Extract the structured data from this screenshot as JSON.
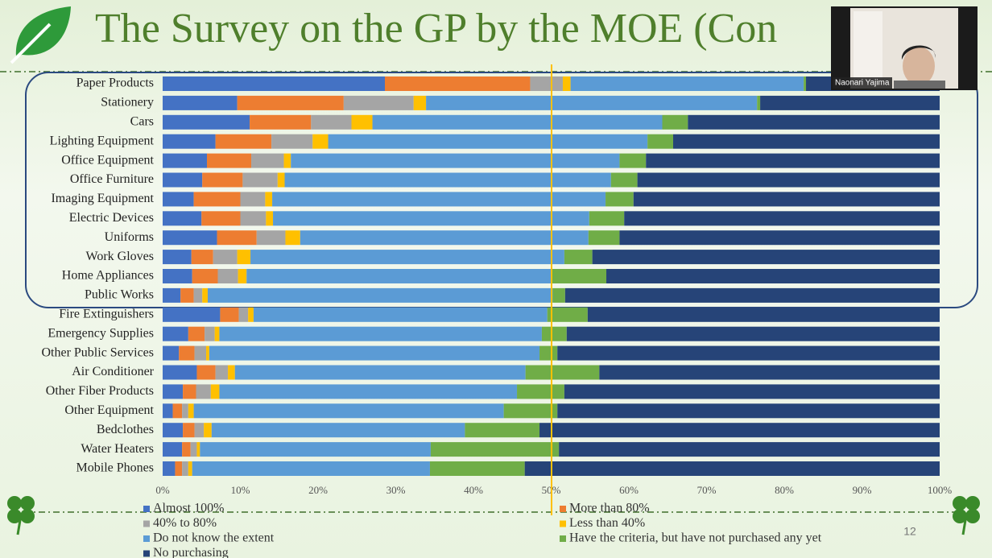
{
  "slide": {
    "title": "The Survey on the GP by the MOE (Con",
    "page_number": "12",
    "participant": "Naonari Yajima"
  },
  "chart_data": {
    "type": "stacked_bar_horizontal",
    "categories": [
      "Paper Products",
      "Stationery",
      "Cars",
      "Lighting Equipment",
      "Office Equipment",
      "Office Furniture",
      "Imaging Equipment",
      "Electric Devices",
      "Uniforms",
      "Work Gloves",
      "Home Appliances",
      "Public Works",
      "Fire Extinguishers",
      "Emergency Supplies",
      "Other Public Services",
      "Air Conditioner",
      "Other Fiber Products",
      "Other Equipment",
      "Bedclothes",
      "Water Heaters",
      "Mobile Phones"
    ],
    "series": [
      {
        "name": "Almost 100%",
        "color": "#4472c4",
        "values": [
          28.6,
          9.6,
          11.2,
          6.8,
          5.7,
          5.1,
          4.0,
          5.0,
          7.0,
          3.7,
          3.8,
          2.3,
          7.4,
          3.3,
          2.1,
          4.4,
          2.6,
          1.3,
          2.6,
          2.5,
          1.6
        ]
      },
      {
        "name": "More than 80%",
        "color": "#ed7d31",
        "values": [
          18.7,
          13.7,
          7.9,
          7.2,
          5.7,
          5.2,
          6.0,
          5.0,
          5.1,
          2.8,
          3.3,
          1.7,
          2.4,
          2.1,
          2.0,
          2.4,
          1.7,
          1.2,
          1.5,
          1.1,
          0.9
        ]
      },
      {
        "name": "40% to 80%",
        "color": "#a5a5a5",
        "values": [
          4.2,
          9.0,
          5.2,
          5.3,
          4.2,
          4.5,
          3.2,
          3.3,
          3.7,
          3.1,
          2.6,
          1.1,
          1.2,
          1.3,
          1.5,
          1.6,
          1.9,
          0.8,
          1.2,
          0.8,
          0.8
        ]
      },
      {
        "name": "Less than 40%",
        "color": "#ffc000",
        "values": [
          1.0,
          1.6,
          2.7,
          2.0,
          0.9,
          0.9,
          0.9,
          0.9,
          1.9,
          1.7,
          1.1,
          0.7,
          0.7,
          0.6,
          0.4,
          0.9,
          1.1,
          0.7,
          1.0,
          0.4,
          0.5
        ]
      },
      {
        "name": "Do not know the extent",
        "color": "#5b9bd5",
        "values": [
          30.0,
          42.6,
          37.3,
          41.1,
          42.3,
          42.0,
          42.9,
          40.7,
          37.1,
          40.4,
          39.3,
          44.4,
          37.8,
          41.5,
          42.5,
          37.4,
          38.3,
          39.9,
          32.6,
          29.7,
          30.6
        ]
      },
      {
        "name": "Have the criteria, but have not purchased any yet",
        "color": "#70ad47",
        "values": [
          0.3,
          0.4,
          3.3,
          3.3,
          3.4,
          3.4,
          3.6,
          4.5,
          4.0,
          3.6,
          7.0,
          1.6,
          5.2,
          3.2,
          2.3,
          9.5,
          6.1,
          6.9,
          9.6,
          16.5,
          12.2
        ]
      },
      {
        "name": "No purchasing",
        "color": "#264478",
        "values": [
          17.2,
          23.1,
          32.4,
          34.3,
          37.8,
          38.9,
          39.4,
          40.6,
          41.2,
          44.7,
          42.9,
          48.2,
          45.3,
          48.0,
          49.2,
          43.8,
          48.3,
          49.2,
          51.5,
          49.0,
          53.4
        ]
      }
    ],
    "xlim": [
      0,
      100
    ],
    "xticks": [
      {
        "value": 0,
        "label": "0%"
      },
      {
        "value": 10,
        "label": "10%"
      },
      {
        "value": 20,
        "label": "20%"
      },
      {
        "value": 30,
        "label": "30%"
      },
      {
        "value": 40,
        "label": "40%"
      },
      {
        "value": 50,
        "label": "50%"
      },
      {
        "value": 60,
        "label": "60%"
      },
      {
        "value": 70,
        "label": "70%"
      },
      {
        "value": 80,
        "label": "80%"
      },
      {
        "value": 90,
        "label": "90%"
      },
      {
        "value": 100,
        "label": "100%"
      }
    ],
    "legend": "bottom"
  }
}
